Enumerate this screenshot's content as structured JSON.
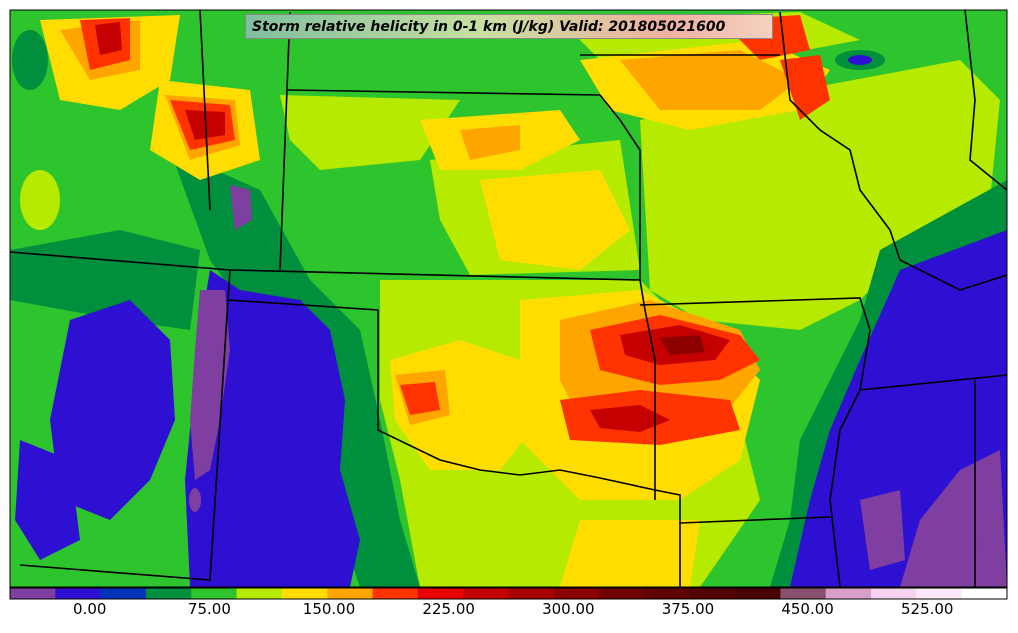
{
  "title": "Storm relative helicity in 0-1 km (J/kg) Valid: 201805021600",
  "colorbar": {
    "colors": [
      "#7f3fa0",
      "#2e10d2",
      "#0033b8",
      "#008f3c",
      "#2ec42e",
      "#b6ea00",
      "#ffdd00",
      "#ffa500",
      "#ff3300",
      "#e80000",
      "#c40000",
      "#a80000",
      "#8c0000",
      "#700000",
      "#600000",
      "#520000",
      "#4a0000",
      "#8a5070",
      "#d8a0c8",
      "#f6d2f0",
      "#fae8f8",
      "#ffffff"
    ],
    "tick_labels": [
      "0.00",
      "75.00",
      "150.00",
      "225.00",
      "300.00",
      "375.00",
      "450.00",
      "525.00"
    ],
    "tick_values": [
      0,
      75,
      150,
      225,
      300,
      375,
      450,
      525
    ],
    "min": -50,
    "max": 575
  },
  "palette": {
    "purple": "#7f3fa0",
    "blue": "#2e10d2",
    "darkblue": "#0033b8",
    "darkgreen": "#008f3c",
    "green": "#2ec42e",
    "lime": "#b6ea00",
    "yellow": "#ffdd00",
    "orange": "#ffa500",
    "red": "#ff3300",
    "darkred": "#c40000"
  }
}
